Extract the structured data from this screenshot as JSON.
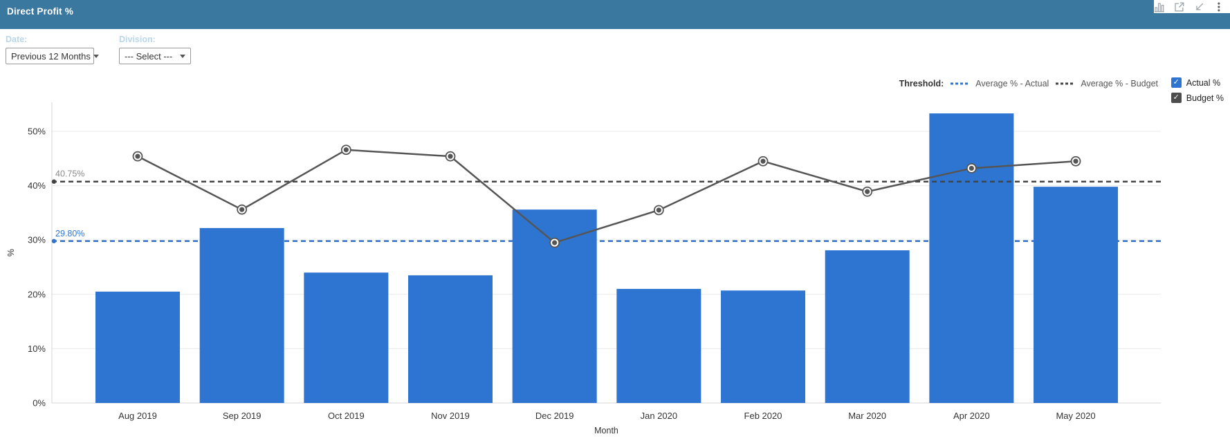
{
  "header": {
    "title": "Direct Profit %"
  },
  "toolbar": {
    "icons": [
      "column-chart",
      "open-in-new",
      "collapse",
      "more-options"
    ]
  },
  "filters": {
    "date_label": "Date:",
    "date_value": "Previous 12 Months",
    "division_label": "Division:",
    "division_value": "--- Select ---"
  },
  "legend": {
    "threshold_label": "Threshold:",
    "items": [
      {
        "label": "Average % - Actual",
        "color": "#2e75d2"
      },
      {
        "label": "Average % - Budget",
        "color": "#444444"
      }
    ],
    "series": [
      {
        "label": "Actual %",
        "color": "#2e75d2",
        "checked": true
      },
      {
        "label": "Budget %",
        "color": "#4d4d4d",
        "checked": true
      }
    ]
  },
  "chart_data": {
    "type": "bar",
    "title": "Direct Profit %",
    "xlabel": "Month",
    "ylabel": "%",
    "categories": [
      "Aug 2019",
      "Sep 2019",
      "Oct 2019",
      "Nov 2019",
      "Dec 2019",
      "Jan 2020",
      "Feb 2020",
      "Mar 2020",
      "Apr 2020",
      "May 2020"
    ],
    "series": [
      {
        "name": "Actual %",
        "type": "bar",
        "color": "#2e75d2",
        "values": [
          20.5,
          32.2,
          24.0,
          23.5,
          35.6,
          21.0,
          20.7,
          28.1,
          53.3,
          39.8
        ]
      },
      {
        "name": "Budget %",
        "type": "line",
        "color": "#555555",
        "values": [
          45.4,
          35.6,
          46.6,
          45.4,
          29.5,
          35.5,
          44.5,
          38.9,
          43.2,
          44.5
        ]
      }
    ],
    "thresholds": [
      {
        "name": "Average % - Budget",
        "label": "40.75%",
        "value": 40.75,
        "color": "#444444",
        "label_color": "#8a8a8a"
      },
      {
        "name": "Average % - Actual",
        "label": "29.80%",
        "value": 29.8,
        "color": "#2e75d2",
        "label_color": "#2e75d2"
      }
    ],
    "yticks": [
      0,
      10,
      20,
      30,
      40,
      50
    ],
    "ytick_suffix": "%",
    "ylim": [
      0,
      55.7
    ],
    "grid": true,
    "legend_position": "top-right"
  }
}
